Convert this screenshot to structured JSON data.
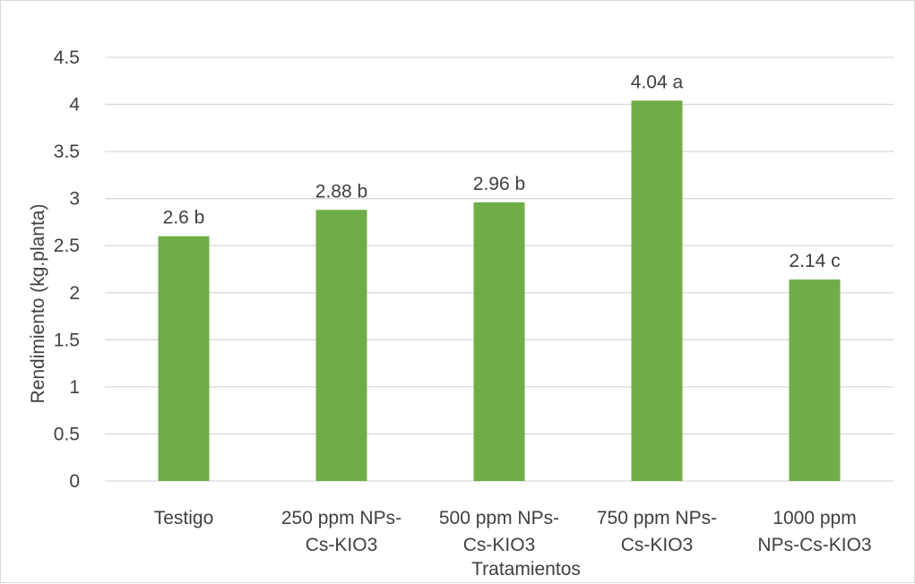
{
  "chart_data": {
    "type": "bar",
    "title": "",
    "xlabel": "Tratamientos",
    "ylabel": "Rendimiento (kg.planta)",
    "categories": [
      [
        "Testigo"
      ],
      [
        "250 ppm NPs-",
        "Cs-KIO3"
      ],
      [
        "500 ppm NPs-",
        "Cs-KIO3"
      ],
      [
        "750 ppm NPs-",
        "Cs-KIO3"
      ],
      [
        "1000 ppm",
        "NPs-Cs-KIO3"
      ]
    ],
    "values": [
      2.6,
      2.88,
      2.96,
      4.04,
      2.14
    ],
    "data_labels": [
      "2.6 b",
      "2.88 b",
      "2.96 b",
      "4.04 a",
      "2.14 c"
    ],
    "ylim": [
      0,
      4.5
    ],
    "yticks": [
      "0",
      "0.5",
      "1",
      "1.5",
      "2",
      "2.5",
      "3",
      "3.5",
      "4",
      "4.5"
    ],
    "grid": true,
    "legend": "none",
    "bar_color": "#70ad47",
    "grid_color": "#d9d9d9",
    "text_color": "#404040"
  }
}
